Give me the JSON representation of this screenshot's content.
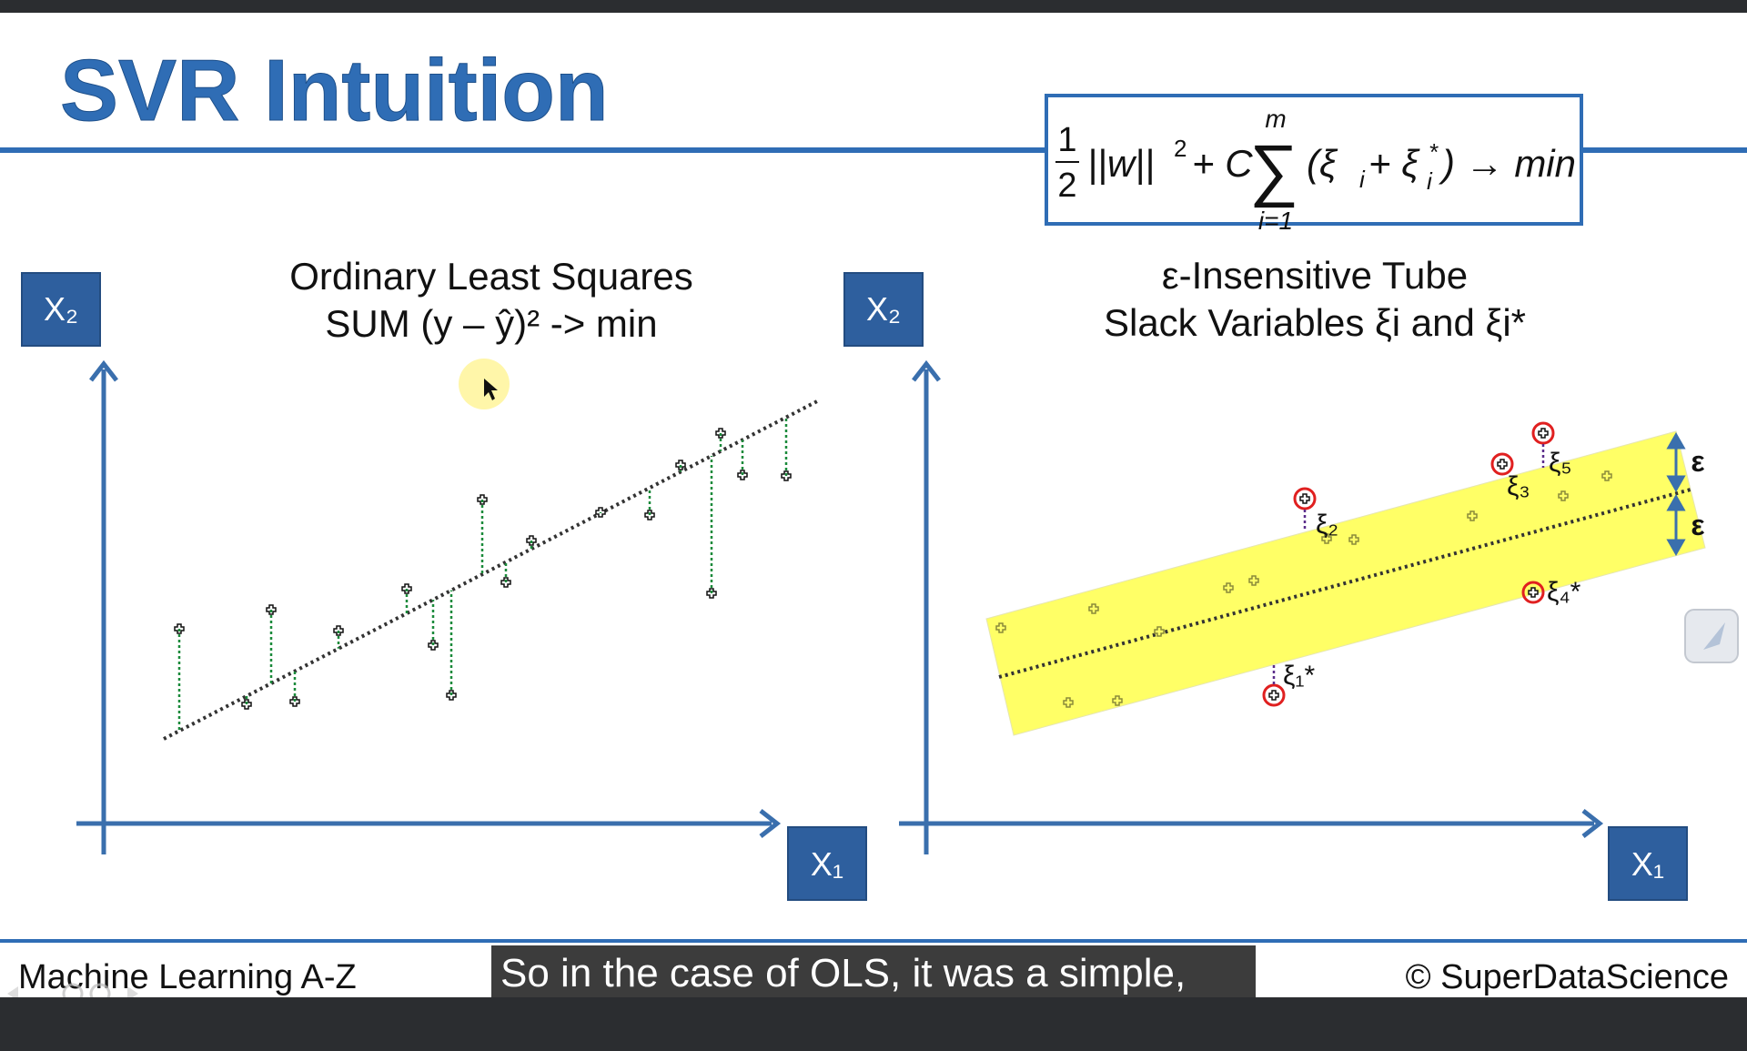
{
  "slide": {
    "title": "SVR Intuition",
    "formula": {
      "frac_num": "1",
      "frac_den": "2",
      "norm": "||w||",
      "norm_sup": "2",
      "plus_c": "+ C",
      "sigma": "∑",
      "sum_upper": "m",
      "sum_lower": "i=1",
      "term": "(ξ",
      "term_sub1": "i",
      "term_plus": " + ξ",
      "term_sup2": "*",
      "term_sub2": "i",
      "tail": ") → min"
    },
    "left_panel": {
      "heading_line1": "Ordinary Least Squares",
      "heading_line2": "SUM (y – ŷ)² -> min",
      "y_axis_label": "X₂",
      "x_axis_label": "X₁"
    },
    "right_panel": {
      "heading_line1": "ε-Insensitive Tube",
      "heading_line2": "Slack Variables ξi and ξi*",
      "y_axis_label": "X₂",
      "x_axis_label": "X₁",
      "epsilon_upper": "ε",
      "epsilon_lower": "ε",
      "slack_labels": {
        "xi1": "ξ₁*",
        "xi2": "ξ₂",
        "xi3": "ξ₃",
        "xi4": "ξ₄*",
        "xi5": "ξ₅"
      }
    },
    "footer": {
      "left": "Machine Learning A-Z",
      "right": "© SuperDataScience",
      "caption": "So in the case of OLS, it was a simple,"
    }
  },
  "colors": {
    "title": "#2f6db5",
    "axis": "#3a6fad",
    "box": "#2e5f9e",
    "tube": "#ffff66",
    "residual": "#1a8a3a",
    "circle": "#e02020"
  },
  "icons": [
    "plus-marker-icon",
    "cursor-icon",
    "slash-tool-icon",
    "player-controls-icon"
  ]
}
